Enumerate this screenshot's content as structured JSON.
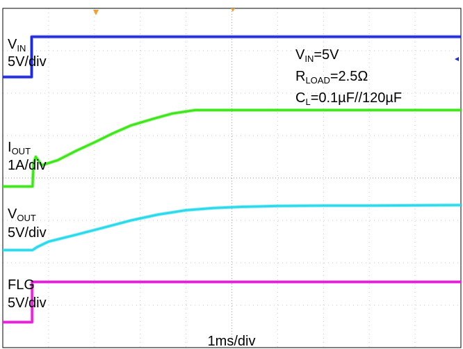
{
  "chart_data": {
    "type": "line",
    "title": "",
    "xlabel": "1ms/div",
    "ylabel": "",
    "x_unit": "ms",
    "time_per_div_ms": 1,
    "x_divisions": 10,
    "y_divisions": 8,
    "grid": true,
    "trigger_marker_color": "#f0a030",
    "conditions": [
      {
        "main": "V",
        "sub": "IN",
        "rest": "=5V"
      },
      {
        "main": "R",
        "sub": "LOAD",
        "rest": "=2.5Ω"
      },
      {
        "main": "C",
        "sub": "L",
        "rest": "=0.1µF//120µF"
      }
    ],
    "series": [
      {
        "main": "V",
        "sub": "IN",
        "scale": "5V/div",
        "color": "#1f2bd6",
        "baseline_div": 6.38,
        "x": [
          0,
          0.63,
          0.63,
          10
        ],
        "y_div": [
          0,
          0,
          0.95,
          0.95
        ]
      },
      {
        "main": "I",
        "sub": "OUT",
        "scale": "1A/div",
        "color": "#3ee619",
        "baseline_div": 3.8,
        "x": [
          0,
          0.65,
          0.67,
          0.72,
          0.85,
          1.2,
          1.6,
          2.0,
          2.4,
          2.8,
          3.3,
          3.7,
          4.2,
          4.6,
          5.1,
          5.5,
          6.0,
          10
        ],
        "y_div": [
          0,
          0,
          0.55,
          0.7,
          0.5,
          0.62,
          0.84,
          1.04,
          1.25,
          1.44,
          1.6,
          1.72,
          1.8,
          1.8,
          1.8,
          1.8,
          1.8,
          1.8
        ]
      },
      {
        "main": "V",
        "sub": "OUT",
        "scale": "5V/div",
        "color": "#2ad9ea",
        "baseline_div": 2.3,
        "x": [
          0,
          0.65,
          0.75,
          1.0,
          1.6,
          2.2,
          2.8,
          3.4,
          4.0,
          4.6,
          5.2,
          6.0,
          7.0,
          8.0,
          10
        ],
        "y_div": [
          0,
          0,
          0.07,
          0.2,
          0.36,
          0.53,
          0.7,
          0.84,
          0.94,
          0.99,
          1.02,
          1.04,
          1.05,
          1.05,
          1.06
        ]
      },
      {
        "main": "FLG",
        "sub": "",
        "scale": "5V/div",
        "color": "#e41fd8",
        "baseline_div": 0.6,
        "x": [
          0,
          0.64,
          0.64,
          10
        ],
        "y_div": [
          0,
          0,
          0.95,
          0.95
        ]
      }
    ]
  }
}
